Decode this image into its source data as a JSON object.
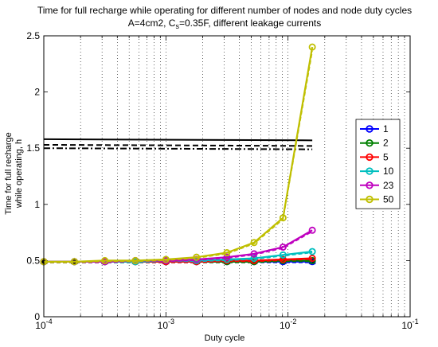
{
  "chart_data": {
    "type": "line",
    "title_line1": "Time for full recharge while operating for different number of nodes and node duty cycles",
    "title_line2_pre": "A=4cm2, C",
    "title_line2_sub": "s",
    "title_line2_post": "=0.35F, different leakage currents",
    "xlabel": "Duty cycle",
    "ylabel_line1": "Time for full recharge",
    "ylabel_line2": "while operating, h",
    "x_scale": "log",
    "xlim": [
      0.0001,
      0.1
    ],
    "ylim": [
      0,
      2.5
    ],
    "grid": "x-only dotted",
    "x_ticks": [
      {
        "value": 0.0001,
        "base": "10",
        "exp": "-4"
      },
      {
        "value": 0.001,
        "base": "10",
        "exp": "-3"
      },
      {
        "value": 0.01,
        "base": "10",
        "exp": "-2"
      },
      {
        "value": 0.1,
        "base": "10",
        "exp": "-1"
      }
    ],
    "y_ticks": [
      {
        "value": 0,
        "label": "0"
      },
      {
        "value": 0.5,
        "label": "0.5"
      },
      {
        "value": 1,
        "label": "1"
      },
      {
        "value": 1.5,
        "label": "1.5"
      },
      {
        "value": 2,
        "label": "2"
      },
      {
        "value": 2.5,
        "label": "2.5"
      }
    ],
    "legend_position": "right",
    "x": [
      0.0001,
      0.000178,
      0.000316,
      0.000562,
      0.001,
      0.00178,
      0.00316,
      0.00527,
      0.0091,
      0.0158
    ],
    "series": [
      {
        "name": "1",
        "color": "#0000ff",
        "values": [
          0.49,
          0.49,
          0.49,
          0.49,
          0.49,
          0.49,
          0.49,
          0.49,
          0.49,
          0.49
        ]
      },
      {
        "name": "2",
        "color": "#008000",
        "values": [
          0.49,
          0.49,
          0.49,
          0.49,
          0.49,
          0.49,
          0.49,
          0.49,
          0.5,
          0.5
        ]
      },
      {
        "name": "5",
        "color": "#ff0000",
        "values": [
          0.49,
          0.49,
          0.49,
          0.49,
          0.49,
          0.49,
          0.5,
          0.5,
          0.51,
          0.52
        ]
      },
      {
        "name": "10",
        "color": "#00bfbf",
        "values": [
          0.49,
          0.49,
          0.49,
          0.49,
          0.5,
          0.5,
          0.51,
          0.52,
          0.55,
          0.58
        ]
      },
      {
        "name": "23",
        "color": "#bf00bf",
        "values": [
          0.49,
          0.49,
          0.49,
          0.5,
          0.5,
          0.51,
          0.53,
          0.56,
          0.62,
          0.77
        ]
      },
      {
        "name": "50",
        "color": "#bfbf00",
        "values": [
          0.49,
          0.49,
          0.5,
          0.5,
          0.51,
          0.53,
          0.57,
          0.66,
          0.88,
          2.4
        ]
      }
    ],
    "extra_lines": [
      {
        "style": "solid",
        "color": "#000000",
        "x": [
          0.0001,
          0.0158
        ],
        "values": [
          1.58,
          1.57
        ]
      },
      {
        "style": "dashed",
        "color": "#000000",
        "x": [
          0.0001,
          0.0158
        ],
        "values": [
          1.53,
          1.52
        ]
      },
      {
        "style": "dashdot",
        "color": "#000000",
        "x": [
          0.0001,
          0.0158
        ],
        "values": [
          1.5,
          1.49
        ]
      }
    ]
  }
}
